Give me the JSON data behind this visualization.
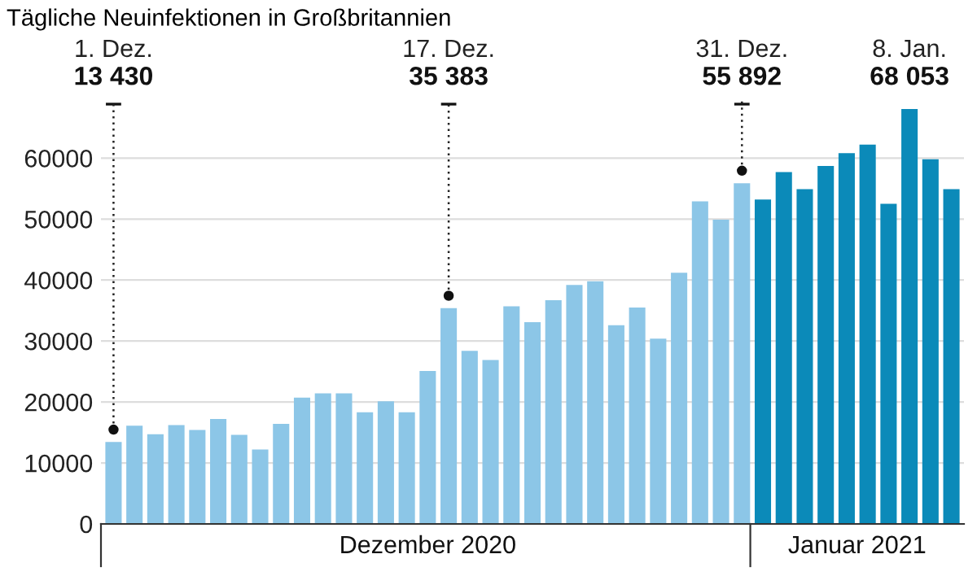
{
  "chart_data": {
    "type": "bar",
    "title": "Tägliche Neuinfektionen in Großbritannien",
    "categories": [
      null,
      null,
      null,
      null,
      null,
      null,
      null,
      null,
      null,
      null,
      null,
      null,
      null,
      null,
      null,
      null,
      null,
      null,
      null,
      null,
      null,
      null,
      null,
      null,
      null,
      null,
      null,
      null,
      null,
      null,
      null,
      null,
      null,
      null,
      null,
      null,
      null,
      null,
      null,
      null,
      null
    ],
    "values": [
      13430,
      16100,
      14700,
      16200,
      15400,
      17200,
      14600,
      12200,
      16400,
      20700,
      21400,
      21400,
      18300,
      20100,
      18300,
      25100,
      35383,
      28400,
      26900,
      35700,
      33100,
      36700,
      39200,
      39800,
      32600,
      35500,
      30400,
      41200,
      52900,
      49900,
      55892,
      53200,
      57700,
      54900,
      58700,
      60800,
      62200,
      52500,
      68053,
      59800,
      54900
    ],
    "colors": [
      "#8cc6e7",
      "#8cc6e7",
      "#8cc6e7",
      "#8cc6e7",
      "#8cc6e7",
      "#8cc6e7",
      "#8cc6e7",
      "#8cc6e7",
      "#8cc6e7",
      "#8cc6e7",
      "#8cc6e7",
      "#8cc6e7",
      "#8cc6e7",
      "#8cc6e7",
      "#8cc6e7",
      "#8cc6e7",
      "#8cc6e7",
      "#8cc6e7",
      "#8cc6e7",
      "#8cc6e7",
      "#8cc6e7",
      "#8cc6e7",
      "#8cc6e7",
      "#8cc6e7",
      "#8cc6e7",
      "#8cc6e7",
      "#8cc6e7",
      "#8cc6e7",
      "#8cc6e7",
      "#8cc6e7",
      "#8cc6e7",
      "#0b8ab9",
      "#0b8ab9",
      "#0b8ab9",
      "#0b8ab9",
      "#0b8ab9",
      "#0b8ab9",
      "#0b8ab9",
      "#0b8ab9",
      "#0b8ab9",
      "#0b8ab9"
    ],
    "value_labels": [
      "13 430",
      null,
      null,
      null,
      null,
      null,
      null,
      null,
      null,
      null,
      null,
      null,
      null,
      null,
      null,
      null,
      "35 383",
      null,
      null,
      null,
      null,
      null,
      null,
      null,
      null,
      null,
      null,
      null,
      null,
      null,
      "55 892",
      null,
      null,
      null,
      null,
      null,
      null,
      null,
      "68 053",
      null,
      null
    ],
    "annotations": [
      "1. Dez.",
      "17. Dez.",
      "31. Dez.",
      "8. Jan.",
      "Dezember 2020",
      "Januar 2021"
    ],
    "ylim": [
      0,
      68053
    ],
    "yticks": [
      0,
      10000,
      20000,
      30000,
      40000,
      50000,
      60000
    ],
    "grid": "y",
    "tick_labels": "y"
  }
}
